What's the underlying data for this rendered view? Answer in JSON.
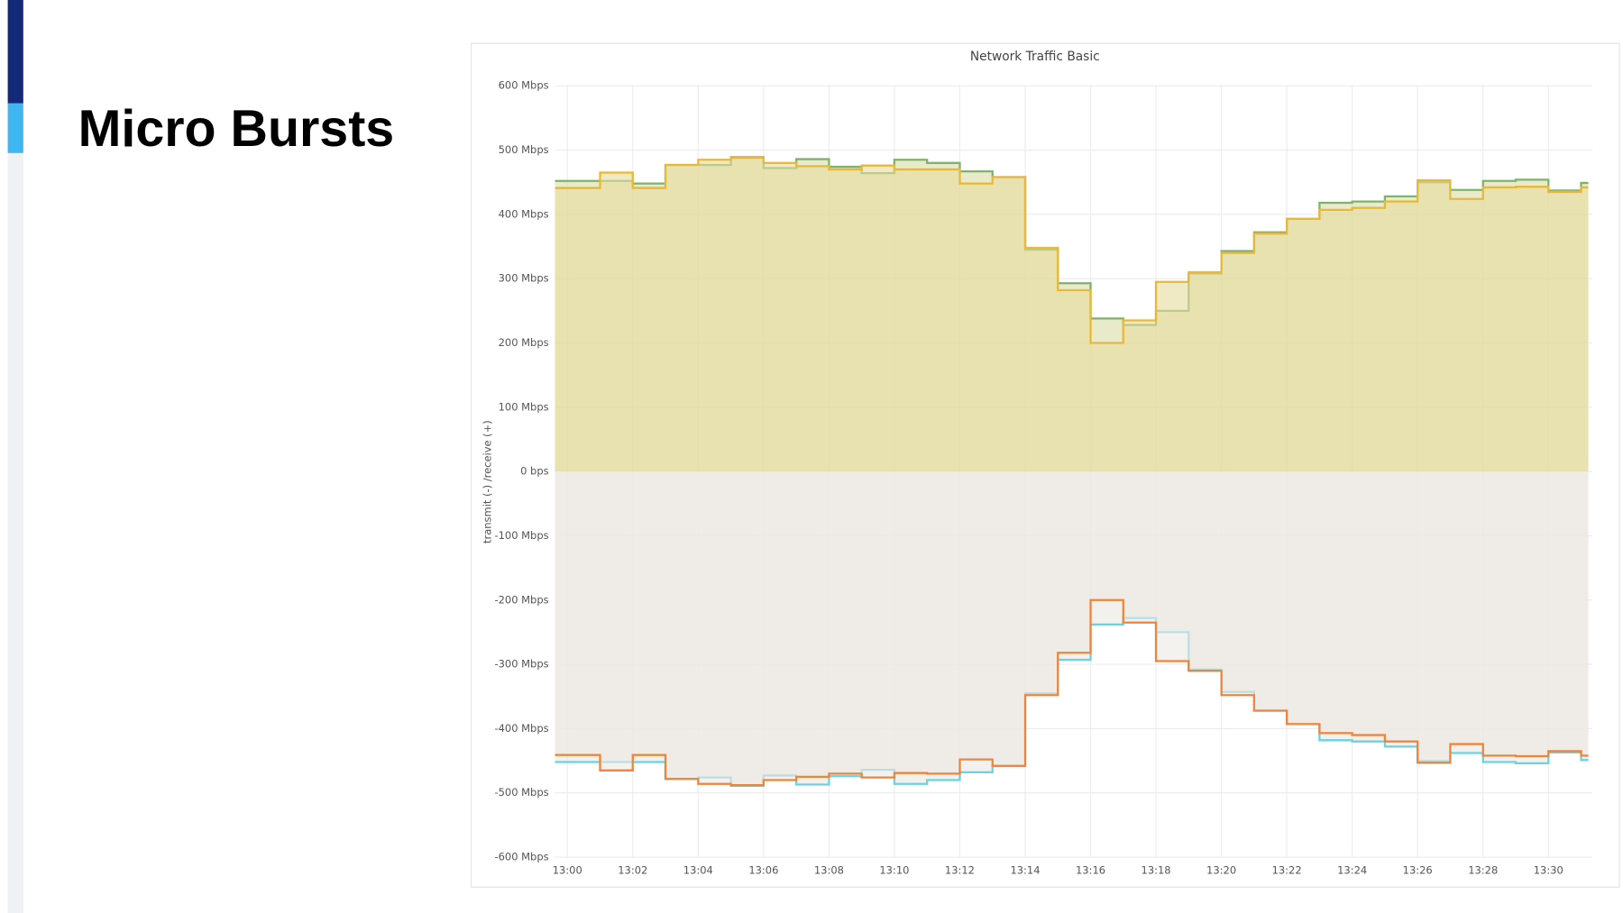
{
  "slide": {
    "title": "Micro Bursts"
  },
  "chart_data": {
    "type": "line",
    "step": true,
    "area": true,
    "grid": true,
    "title": "Network Traffic Basic",
    "ylabel": "transmit  (-)  /receive  (+)",
    "x": [
      "13:00",
      "13:01",
      "13:02",
      "13:03",
      "13:04",
      "13:05",
      "13:06",
      "13:07",
      "13:08",
      "13:09",
      "13:10",
      "13:11",
      "13:12",
      "13:13",
      "13:14",
      "13:15",
      "13:16",
      "13:17",
      "13:18",
      "13:19",
      "13:20",
      "13:21",
      "13:22",
      "13:23",
      "13:24",
      "13:25",
      "13:26",
      "13:27",
      "13:28",
      "13:29",
      "13:30",
      "13:31"
    ],
    "xlim": [
      "13:00",
      "13:31"
    ],
    "xticks": [
      "13:00",
      "13:02",
      "13:04",
      "13:06",
      "13:08",
      "13:10",
      "13:12",
      "13:14",
      "13:16",
      "13:18",
      "13:20",
      "13:22",
      "13:24",
      "13:26",
      "13:28",
      "13:30"
    ],
    "ylim": [
      -600,
      600
    ],
    "yticks": [
      {
        "value": -600,
        "label": "-600 Mbps"
      },
      {
        "value": -500,
        "label": "-500 Mbps"
      },
      {
        "value": -400,
        "label": "-400 Mbps"
      },
      {
        "value": -300,
        "label": "-300 Mbps"
      },
      {
        "value": -200,
        "label": "-200 Mbps"
      },
      {
        "value": -100,
        "label": "-100 Mbps"
      },
      {
        "value": 0,
        "label": "0 bps"
      },
      {
        "value": 100,
        "label": "100 Mbps"
      },
      {
        "value": 200,
        "label": "200 Mbps"
      },
      {
        "value": 300,
        "label": "300 Mbps"
      },
      {
        "value": 400,
        "label": "400 Mbps"
      },
      {
        "value": 500,
        "label": "500 Mbps"
      },
      {
        "value": 600,
        "label": "600 Mbps"
      }
    ],
    "series": [
      {
        "color": "#7eb26d",
        "fill": "#d9dca6",
        "values": [
          452,
          452,
          448,
          477,
          477,
          489,
          472,
          486,
          474,
          464,
          485,
          480,
          467,
          458,
          345,
          293,
          238,
          228,
          250,
          308,
          343,
          372,
          393,
          418,
          420,
          428,
          450,
          438,
          452,
          454,
          437,
          449
        ]
      },
      {
        "color": "#eab839",
        "fill": "#e6dc9c",
        "values": [
          441,
          465,
          441,
          477,
          485,
          488,
          480,
          475,
          470,
          476,
          470,
          470,
          448,
          458,
          348,
          282,
          200,
          235,
          295,
          310,
          340,
          370,
          393,
          407,
          410,
          420,
          453,
          424,
          442,
          443,
          435,
          442
        ]
      },
      {
        "color": "#6ed0e0",
        "fill": "#ebe8e3",
        "values": [
          -452,
          -452,
          -452,
          -478,
          -476,
          -489,
          -473,
          -487,
          -474,
          -464,
          -486,
          -480,
          -468,
          -458,
          -345,
          -293,
          -238,
          -228,
          -250,
          -308,
          -343,
          -372,
          -393,
          -418,
          -420,
          -428,
          -450,
          -438,
          -452,
          -454,
          -437,
          -449
        ]
      },
      {
        "color": "#ef843c",
        "fill": "#ede9e4",
        "values": [
          -441,
          -465,
          -441,
          -478,
          -486,
          -488,
          -480,
          -475,
          -470,
          -476,
          -469,
          -470,
          -448,
          -458,
          -348,
          -282,
          -200,
          -235,
          -295,
          -310,
          -348,
          -372,
          -393,
          -407,
          -410,
          -420,
          -453,
          -424,
          -442,
          -443,
          -435,
          -442
        ]
      }
    ]
  }
}
